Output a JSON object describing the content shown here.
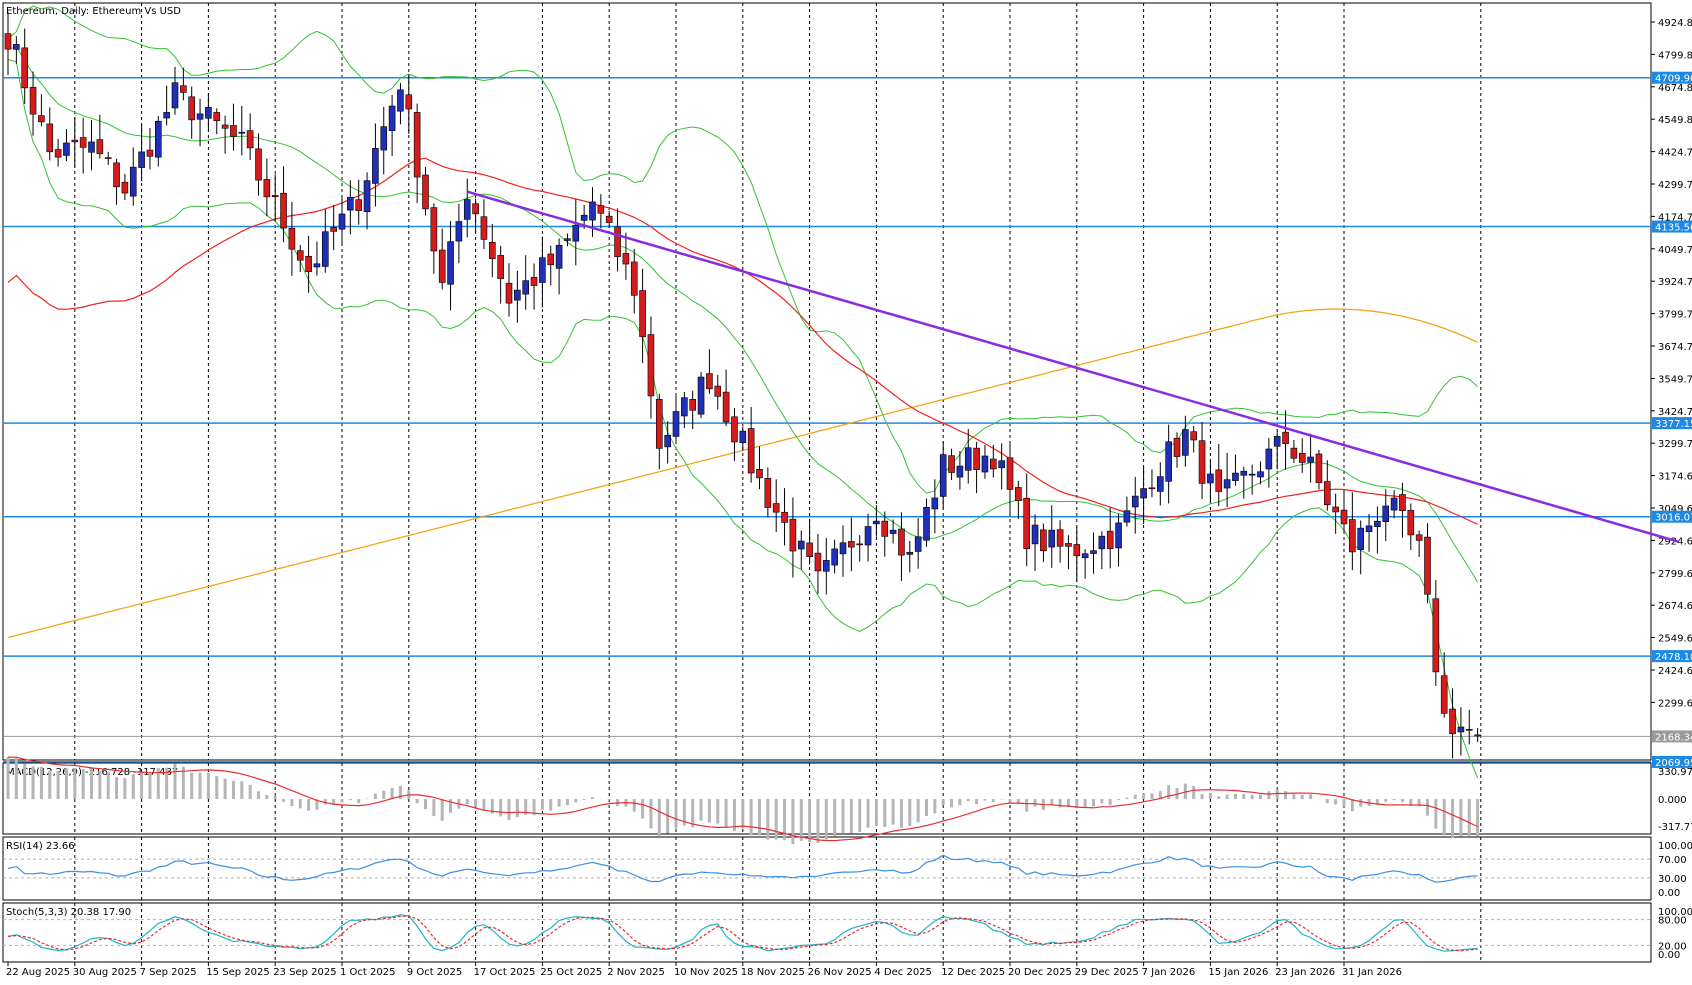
{
  "chart_title": "Ethereum, Daily: Ethereum Vs USD",
  "colors": {
    "bull": "#1f2fb6",
    "bear": "#d41c1c",
    "bollinger": "#33c233",
    "ma_fast": "#ee2020",
    "ma_slow": "#f6a21b",
    "trendline": "#8a2be2",
    "level": "#1e88e5",
    "macd_hist": "#b5b5b5",
    "macd_signal": "#e53030",
    "rsi": "#3a8fe6",
    "stoch_main": "#20b5c8",
    "stoch_signal": "#e53030"
  },
  "chart_data": {
    "type": "candlestick",
    "price_axis_labels": [
      "4924.83",
      "4799.82",
      "4674.81",
      "4549.80",
      "4424.79",
      "4299.78",
      "4174.77",
      "4049.76",
      "3924.75",
      "3799.74",
      "3674.73",
      "3549.72",
      "3424.71",
      "3299.70",
      "3174.69",
      "3049.68",
      "2924.67",
      "2799.66",
      "2674.65",
      "2549.64",
      "2424.63",
      "2299.62"
    ],
    "date_labels": [
      "22 Aug 2025",
      "30 Aug 2025",
      "7 Sep 2025",
      "15 Sep 2025",
      "23 Sep 2025",
      "1 Oct 2025",
      "9 Oct 2025",
      "17 Oct 2025",
      "25 Oct 2025",
      "2 Nov 2025",
      "10 Nov 2025",
      "18 Nov 2025",
      "26 Nov 2025",
      "4 Dec 2025",
      "12 Dec 2025",
      "20 Dec 2025",
      "29 Dec 2025",
      "7 Jan 2026",
      "15 Jan 2026",
      "23 Jan 2026",
      "31 Jan 2026"
    ],
    "horizontal_levels": [
      {
        "value": 4709.9,
        "label": "4709.90",
        "style": "solid"
      },
      {
        "value": 4135.56,
        "label": "4135.56",
        "style": "solid"
      },
      {
        "value": 3377.15,
        "label": "3377.15",
        "style": "solid"
      },
      {
        "value": 3016.07,
        "label": "3016.07",
        "style": "solid"
      },
      {
        "value": 2478.18,
        "label": "2478.18",
        "style": "solid"
      },
      {
        "value": 2069.95,
        "label": "2069.95",
        "style": "solid"
      },
      {
        "value": 2168.34,
        "label": "2168.34",
        "style": "current"
      }
    ],
    "trendline": {
      "from": {
        "bar": 55,
        "price": 4270
      },
      "to": {
        "bar": 200,
        "price": 2920
      }
    },
    "waypoints": [
      [
        0,
        4880,
        "up"
      ],
      [
        5,
        4420,
        "dn"
      ],
      [
        10,
        4440,
        "up"
      ],
      [
        14,
        4280,
        "dn"
      ],
      [
        20,
        4640,
        "up"
      ],
      [
        28,
        4450,
        "dn"
      ],
      [
        36,
        3970,
        "dn"
      ],
      [
        42,
        4250,
        "up"
      ],
      [
        47,
        4700,
        "up"
      ],
      [
        52,
        3900,
        "dn"
      ],
      [
        55,
        4280,
        "up"
      ],
      [
        60,
        3860,
        "dn"
      ],
      [
        66,
        4020,
        "up"
      ],
      [
        70,
        4230,
        "up"
      ],
      [
        75,
        3900,
        "dn"
      ],
      [
        78,
        3300,
        "dn"
      ],
      [
        84,
        3560,
        "up"
      ],
      [
        90,
        3150,
        "dn"
      ],
      [
        97,
        2760,
        "dn"
      ],
      [
        104,
        3050,
        "up"
      ],
      [
        108,
        2850,
        "dn"
      ],
      [
        112,
        3210,
        "up"
      ],
      [
        118,
        3260,
        "up"
      ],
      [
        122,
        2950,
        "dn"
      ],
      [
        127,
        2880,
        "dn"
      ],
      [
        133,
        2960,
        "up"
      ],
      [
        137,
        3180,
        "up"
      ],
      [
        141,
        3330,
        "up"
      ],
      [
        145,
        3070,
        "dn"
      ],
      [
        153,
        3310,
        "up"
      ],
      [
        156,
        3200,
        "dn"
      ],
      [
        161,
        2900,
        "dn"
      ],
      [
        165,
        3080,
        "up"
      ],
      [
        169,
        2880,
        "dn"
      ],
      [
        172,
        2240,
        "dn"
      ],
      [
        176,
        2170,
        "dn"
      ]
    ],
    "bollinger": {
      "period": 20
    },
    "moving_averages": [
      {
        "period": 50,
        "color_key": "ma_fast"
      },
      {
        "period": 200,
        "color_key": "ma_slow"
      }
    ],
    "macd": {
      "label": "MACD(12,26,9) -216.728 -117.487",
      "axis_labels": [
        "330.974",
        "0.000",
        "-317.778"
      ],
      "range": [
        -317.778,
        330.974
      ]
    },
    "rsi": {
      "label": "RSI(14) 23.66",
      "axis_labels": [
        "100.00",
        "70.00",
        "30.00",
        "0.00"
      ],
      "levels": [
        70,
        30
      ],
      "range": [
        0,
        100
      ]
    },
    "stochastic": {
      "label": "Stoch(5,3,3) 20.38 17.90",
      "axis_labels": [
        "100.00",
        "80.00",
        "20.00",
        "0.00"
      ],
      "levels": [
        80,
        20
      ],
      "range": [
        0,
        100
      ]
    }
  }
}
